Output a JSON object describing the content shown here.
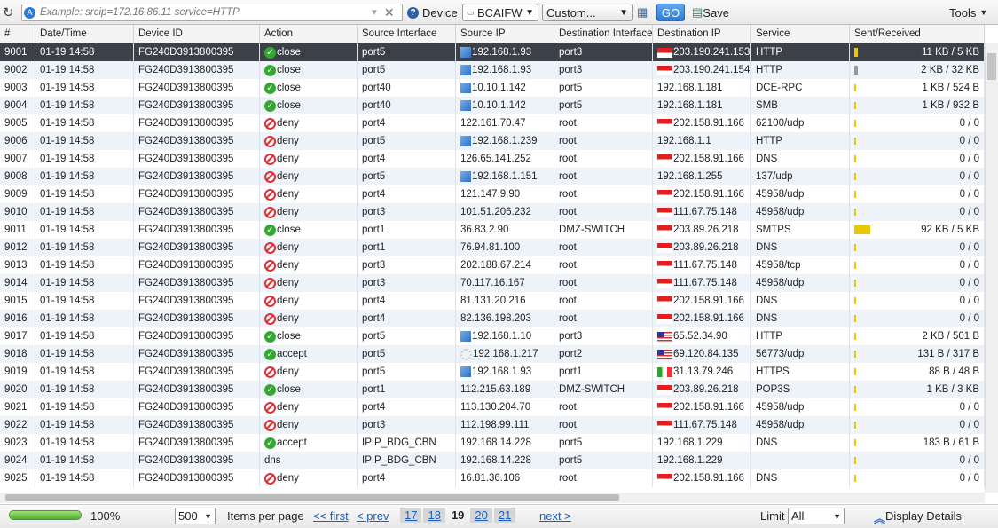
{
  "toolbar": {
    "search_placeholder": "Example: srcip=172.16.86.11 service=HTTP",
    "device_label": "Device",
    "device_value": "BCAIFW",
    "time_value": "Custom...",
    "go_label": "GO",
    "save_label": "Save",
    "tools_label": "Tools"
  },
  "columns": [
    "#",
    "Date/Time",
    "Device ID",
    "Action",
    "Source Interface",
    "Source IP",
    "Destination Interface",
    "Destination IP",
    "Service",
    "Sent/Received"
  ],
  "rows": [
    {
      "id": "9001",
      "time": "01-19 14:58",
      "device": "FG240D3913800395",
      "action": "close",
      "srcif": "port5",
      "srcicon": "windows",
      "srcip": "192.168.1.93",
      "dstif": "port3",
      "flag": "id",
      "dstip": "203.190.241.153",
      "service": "HTTP",
      "bytes": "11 KB / 5 KB",
      "level": 0.05,
      "selected": true
    },
    {
      "id": "9002",
      "time": "01-19 14:58",
      "device": "FG240D3913800395",
      "action": "close",
      "srcif": "port5",
      "srcicon": "windows",
      "srcip": "192.168.1.93",
      "dstif": "port3",
      "flag": "id",
      "dstip": "203.190.241.154",
      "service": "HTTP",
      "bytes": "2 KB / 32 KB",
      "level": 0.06,
      "barcolor": "#999999"
    },
    {
      "id": "9003",
      "time": "01-19 14:58",
      "device": "FG240D3913800395",
      "action": "close",
      "srcif": "port40",
      "srcicon": "windows",
      "srcip": "10.10.1.142",
      "dstif": "port5",
      "flag": "",
      "dstip": "192.168.1.181",
      "service": "DCE-RPC",
      "bytes": "1 KB / 524 B",
      "level": 0.01
    },
    {
      "id": "9004",
      "time": "01-19 14:58",
      "device": "FG240D3913800395",
      "action": "close",
      "srcif": "port40",
      "srcicon": "windows",
      "srcip": "10.10.1.142",
      "dstif": "port5",
      "flag": "",
      "dstip": "192.168.1.181",
      "service": "SMB",
      "bytes": "1 KB / 932 B",
      "level": 0.01
    },
    {
      "id": "9005",
      "time": "01-19 14:58",
      "device": "FG240D3913800395",
      "action": "deny",
      "srcif": "port4",
      "srcicon": "",
      "srcip": "122.161.70.47",
      "dstif": "root",
      "flag": "id",
      "dstip": "202.158.91.166",
      "service": "62100/udp",
      "bytes": "0 / 0",
      "level": 0
    },
    {
      "id": "9006",
      "time": "01-19 14:58",
      "device": "FG240D3913800395",
      "action": "deny",
      "srcif": "port5",
      "srcicon": "windows",
      "srcip": "192.168.1.239",
      "dstif": "root",
      "flag": "",
      "dstip": "192.168.1.1",
      "service": "HTTP",
      "bytes": "0 / 0",
      "level": 0
    },
    {
      "id": "9007",
      "time": "01-19 14:58",
      "device": "FG240D3913800395",
      "action": "deny",
      "srcif": "port4",
      "srcicon": "",
      "srcip": "126.65.141.252",
      "dstif": "root",
      "flag": "id",
      "dstip": "202.158.91.166",
      "service": "DNS",
      "bytes": "0 / 0",
      "level": 0
    },
    {
      "id": "9008",
      "time": "01-19 14:58",
      "device": "FG240D3913800395",
      "action": "deny",
      "srcif": "port5",
      "srcicon": "windows",
      "srcip": "192.168.1.151",
      "dstif": "root",
      "flag": "",
      "dstip": "192.168.1.255",
      "service": "137/udp",
      "bytes": "0 / 0",
      "level": 0
    },
    {
      "id": "9009",
      "time": "01-19 14:58",
      "device": "FG240D3913800395",
      "action": "deny",
      "srcif": "port4",
      "srcicon": "",
      "srcip": "121.147.9.90",
      "dstif": "root",
      "flag": "id",
      "dstip": "202.158.91.166",
      "service": "45958/udp",
      "bytes": "0 / 0",
      "level": 0
    },
    {
      "id": "9010",
      "time": "01-19 14:58",
      "device": "FG240D3913800395",
      "action": "deny",
      "srcif": "port3",
      "srcicon": "",
      "srcip": "101.51.206.232",
      "dstif": "root",
      "flag": "id",
      "dstip": "111.67.75.148",
      "service": "45958/udp",
      "bytes": "0 / 0",
      "level": 0
    },
    {
      "id": "9011",
      "time": "01-19 14:58",
      "device": "FG240D3913800395",
      "action": "close",
      "srcif": "port1",
      "srcicon": "",
      "srcip": "36.83.2.90",
      "dstif": "DMZ-SWITCH",
      "flag": "id",
      "dstip": "203.89.26.218",
      "service": "SMTPS",
      "bytes": "92 KB / 5 KB",
      "level": 0.25
    },
    {
      "id": "9012",
      "time": "01-19 14:58",
      "device": "FG240D3913800395",
      "action": "deny",
      "srcif": "port1",
      "srcicon": "",
      "srcip": "76.94.81.100",
      "dstif": "root",
      "flag": "id",
      "dstip": "203.89.26.218",
      "service": "DNS",
      "bytes": "0 / 0",
      "level": 0
    },
    {
      "id": "9013",
      "time": "01-19 14:58",
      "device": "FG240D3913800395",
      "action": "deny",
      "srcif": "port3",
      "srcicon": "",
      "srcip": "202.188.67.214",
      "dstif": "root",
      "flag": "id",
      "dstip": "111.67.75.148",
      "service": "45958/tcp",
      "bytes": "0 / 0",
      "level": 0
    },
    {
      "id": "9014",
      "time": "01-19 14:58",
      "device": "FG240D3913800395",
      "action": "deny",
      "srcif": "port3",
      "srcicon": "",
      "srcip": "70.117.16.167",
      "dstif": "root",
      "flag": "id",
      "dstip": "111.67.75.148",
      "service": "45958/udp",
      "bytes": "0 / 0",
      "level": 0
    },
    {
      "id": "9015",
      "time": "01-19 14:58",
      "device": "FG240D3913800395",
      "action": "deny",
      "srcif": "port4",
      "srcicon": "",
      "srcip": "81.131.20.216",
      "dstif": "root",
      "flag": "id",
      "dstip": "202.158.91.166",
      "service": "DNS",
      "bytes": "0 / 0",
      "level": 0
    },
    {
      "id": "9016",
      "time": "01-19 14:58",
      "device": "FG240D3913800395",
      "action": "deny",
      "srcif": "port4",
      "srcicon": "",
      "srcip": "82.136.198.203",
      "dstif": "root",
      "flag": "id",
      "dstip": "202.158.91.166",
      "service": "DNS",
      "bytes": "0 / 0",
      "level": 0
    },
    {
      "id": "9017",
      "time": "01-19 14:58",
      "device": "FG240D3913800395",
      "action": "close",
      "srcif": "port5",
      "srcicon": "windows",
      "srcip": "192.168.1.10",
      "dstif": "port3",
      "flag": "us",
      "dstip": "65.52.34.90",
      "service": "HTTP",
      "bytes": "2 KB / 501 B",
      "level": 0.01
    },
    {
      "id": "9018",
      "time": "01-19 14:58",
      "device": "FG240D3913800395",
      "action": "accept",
      "srcif": "port5",
      "srcicon": "loading",
      "srcip": "192.168.1.217",
      "dstif": "port2",
      "flag": "us",
      "dstip": "69.120.84.135",
      "service": "56773/udp",
      "bytes": "131 B / 317 B",
      "level": 0
    },
    {
      "id": "9019",
      "time": "01-19 14:58",
      "device": "FG240D3913800395",
      "action": "deny",
      "srcif": "port5",
      "srcicon": "windows",
      "srcip": "192.168.1.93",
      "dstif": "port1",
      "flag": "it",
      "dstip": "31.13.79.246",
      "service": "HTTPS",
      "bytes": "88 B / 48 B",
      "level": 0
    },
    {
      "id": "9020",
      "time": "01-19 14:58",
      "device": "FG240D3913800395",
      "action": "close",
      "srcif": "port1",
      "srcicon": "",
      "srcip": "112.215.63.189",
      "dstif": "DMZ-SWITCH",
      "flag": "id",
      "dstip": "203.89.26.218",
      "service": "POP3S",
      "bytes": "1 KB / 3 KB",
      "level": 0.01
    },
    {
      "id": "9021",
      "time": "01-19 14:58",
      "device": "FG240D3913800395",
      "action": "deny",
      "srcif": "port4",
      "srcicon": "",
      "srcip": "113.130.204.70",
      "dstif": "root",
      "flag": "id",
      "dstip": "202.158.91.166",
      "service": "45958/udp",
      "bytes": "0 / 0",
      "level": 0
    },
    {
      "id": "9022",
      "time": "01-19 14:58",
      "device": "FG240D3913800395",
      "action": "deny",
      "srcif": "port3",
      "srcicon": "",
      "srcip": "112.198.99.111",
      "dstif": "root",
      "flag": "id",
      "dstip": "111.67.75.148",
      "service": "45958/udp",
      "bytes": "0 / 0",
      "level": 0
    },
    {
      "id": "9023",
      "time": "01-19 14:58",
      "device": "FG240D3913800395",
      "action": "accept",
      "srcif": "IPIP_BDG_CBN",
      "srcicon": "",
      "srcip": "192.168.14.228",
      "dstif": "port5",
      "flag": "",
      "dstip": "192.168.1.229",
      "service": "DNS",
      "bytes": "183 B / 61 B",
      "level": 0
    },
    {
      "id": "9024",
      "time": "01-19 14:58",
      "device": "FG240D3913800395",
      "action": "dns",
      "srcif": "IPIP_BDG_CBN",
      "srcicon": "",
      "srcip": "192.168.14.228",
      "dstif": "port5",
      "flag": "",
      "dstip": "192.168.1.229",
      "service": "",
      "bytes": "0 / 0",
      "level": 0
    },
    {
      "id": "9025",
      "time": "01-19 14:58",
      "device": "FG240D3913800395",
      "action": "deny",
      "srcif": "port4",
      "srcicon": "",
      "srcip": "16.81.36.106",
      "dstif": "root",
      "flag": "id",
      "dstip": "202.158.91.166",
      "service": "DNS",
      "bytes": "0 / 0",
      "level": 0
    }
  ],
  "footer": {
    "progress": 100,
    "progress_label": "100%",
    "per_page": "500",
    "per_page_label": "Items per page",
    "first": "<< first",
    "prev": "< prev",
    "pages": [
      "17",
      "18",
      "19",
      "20",
      "21"
    ],
    "current_page": "19",
    "next": "next >",
    "limit_label": "Limit",
    "limit_value": "All",
    "display_details": "Display Details"
  },
  "colors": {
    "selected_row": "#3c4048",
    "alt_row": "#eef3fa",
    "bar": "#e8c800",
    "accent": "#2d7ad8"
  }
}
